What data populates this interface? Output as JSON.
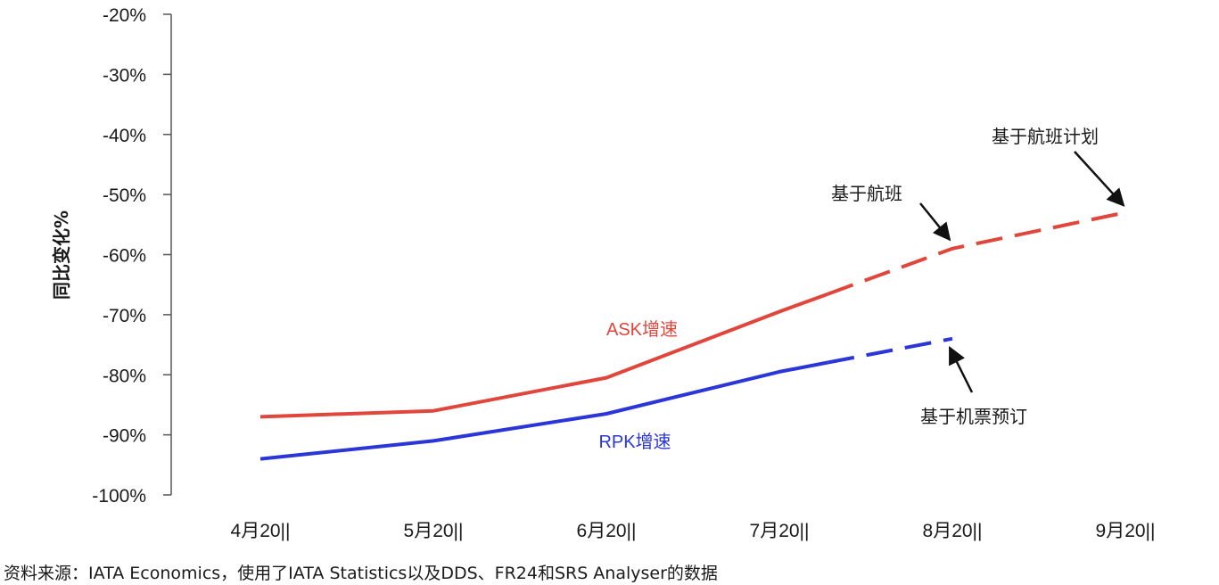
{
  "chart_data": {
    "type": "line",
    "ylabel": "同比变化%",
    "ylim": [
      -100,
      -20
    ],
    "yticks": [
      -20,
      -30,
      -40,
      -50,
      -60,
      -70,
      -80,
      -90,
      -100
    ],
    "ytick_labels": [
      "-20%",
      "-30%",
      "-40%",
      "-50%",
      "-60%",
      "-70%",
      "-80%",
      "-90%",
      "-100%"
    ],
    "categories": [
      "4月20||",
      "5月20||",
      "6月20||",
      "7月20||",
      "8月20||",
      "9月20||"
    ],
    "series": [
      {
        "name": "ASK增速",
        "color": "#e0463c",
        "values": [
          -87,
          -86,
          -80.5,
          -69.5,
          -59,
          -53
        ],
        "dashed_from_index": 3
      },
      {
        "name": "RPK增速",
        "color": "#2a36d8",
        "values": [
          -94,
          -91,
          -86.5,
          -79.5,
          -74,
          null
        ],
        "dashed_from_index": 3
      }
    ],
    "annotations": [
      {
        "text": "基于航班计划",
        "series": 0,
        "index": 5
      },
      {
        "text": "基于航班",
        "series": 0,
        "index": 4
      },
      {
        "text": "基于机票预订",
        "series": 1,
        "index": 4
      }
    ],
    "grid": false,
    "legend": "none"
  },
  "source": "资料来源：IATA Economics，使用了IATA Statistics以及DDS、FR24和SRS Analyser的数据"
}
